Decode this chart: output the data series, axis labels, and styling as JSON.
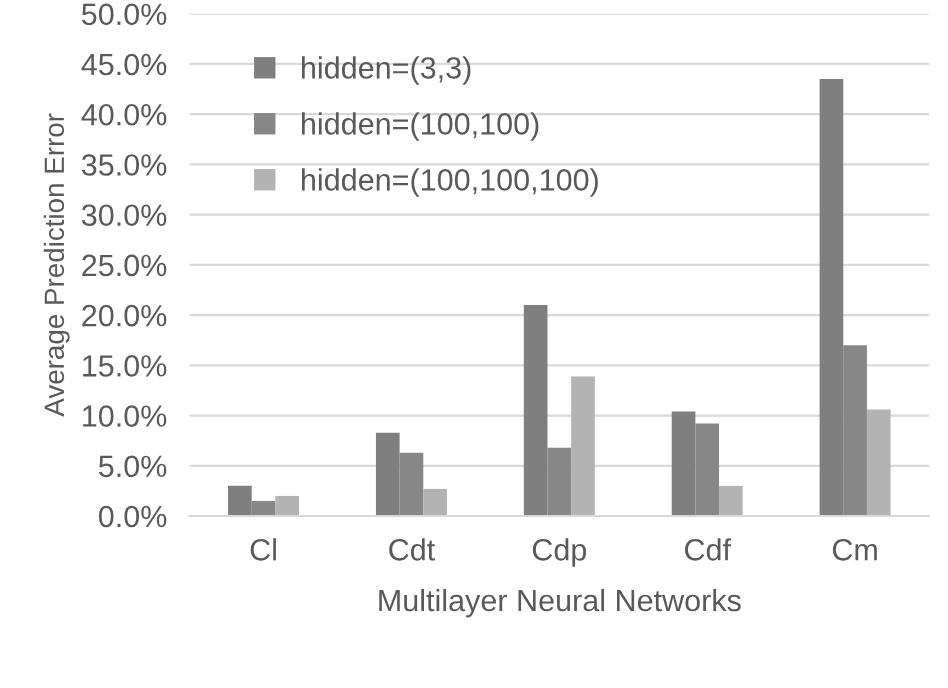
{
  "chart_data": {
    "type": "bar",
    "xlabel": "Multilayer Neural Networks",
    "ylabel": "Average Prediction Error",
    "categories": [
      "Cl",
      "Cdt",
      "Cdp",
      "Cdf",
      "Cm"
    ],
    "series": [
      {
        "name": "hidden=(3,3)",
        "color": "#7f7f7f",
        "values": [
          3.0,
          8.3,
          21.0,
          10.4,
          43.5
        ]
      },
      {
        "name": "hidden=(100,100)",
        "color": "#878787",
        "values": [
          1.5,
          6.3,
          6.8,
          9.2,
          17.0
        ]
      },
      {
        "name": "hidden=(100,100,100)",
        "color": "#b3b3b3",
        "values": [
          2.0,
          2.7,
          13.9,
          3.0,
          10.6
        ]
      }
    ],
    "ylim": [
      0,
      50
    ],
    "yticks": [
      {
        "value": 0,
        "label": "0.0%"
      },
      {
        "value": 5,
        "label": "5.0%"
      },
      {
        "value": 10,
        "label": "10.0%"
      },
      {
        "value": 15,
        "label": "15.0%"
      },
      {
        "value": 20,
        "label": "20.0%"
      },
      {
        "value": 25,
        "label": "25.0%"
      },
      {
        "value": 30,
        "label": "30.0%"
      },
      {
        "value": 35,
        "label": "35.0%"
      },
      {
        "value": 40,
        "label": "40.0%"
      },
      {
        "value": 45,
        "label": "45.0%"
      },
      {
        "value": 50,
        "label": "50.0%"
      }
    ],
    "grid": "y",
    "legend": "top left"
  }
}
